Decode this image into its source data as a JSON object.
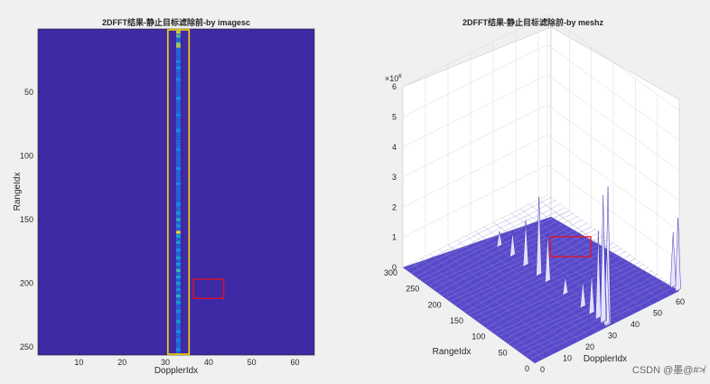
{
  "chart_data": [
    {
      "type": "heatmap",
      "title": "2DFFT结果-静止目标滤除前-by imagesc",
      "xlabel": "DopplerIdx",
      "ylabel": "RangeIdx",
      "xlim": [
        0.5,
        64.5
      ],
      "ylim": [
        0.5,
        256.5
      ],
      "xticks": [
        10,
        20,
        30,
        40,
        50,
        60
      ],
      "yticks": [
        50,
        100,
        150,
        200,
        250
      ],
      "y_direction": "reverse",
      "colormap": "parula",
      "background_color": "#3e2aa5",
      "hot_column": 33,
      "column_hotspots": [
        {
          "range": 3,
          "level": 0.75
        },
        {
          "range": 6,
          "level": 0.55
        },
        {
          "range": 12,
          "level": 0.6
        },
        {
          "range": 14,
          "level": 0.7
        },
        {
          "range": 26,
          "level": 0.25
        },
        {
          "range": 31,
          "level": 0.3
        },
        {
          "range": 40,
          "level": 0.25
        },
        {
          "range": 55,
          "level": 0.3
        },
        {
          "range": 68,
          "level": 0.25
        },
        {
          "range": 80,
          "level": 0.3
        },
        {
          "range": 95,
          "level": 0.25
        },
        {
          "range": 110,
          "level": 0.3
        },
        {
          "range": 122,
          "level": 0.25
        },
        {
          "range": 138,
          "level": 0.3
        },
        {
          "range": 145,
          "level": 0.35
        },
        {
          "range": 150,
          "level": 0.45
        },
        {
          "range": 155,
          "level": 0.3
        },
        {
          "range": 160,
          "level": 0.85
        },
        {
          "range": 163,
          "level": 0.4
        },
        {
          "range": 168,
          "level": 0.35
        },
        {
          "range": 174,
          "level": 0.3
        },
        {
          "range": 180,
          "level": 0.4
        },
        {
          "range": 185,
          "level": 0.35
        },
        {
          "range": 190,
          "level": 0.5
        },
        {
          "range": 195,
          "level": 0.4
        },
        {
          "range": 200,
          "level": 0.35
        },
        {
          "range": 205,
          "level": 0.3
        },
        {
          "range": 210,
          "level": 0.45
        },
        {
          "range": 215,
          "level": 0.35
        },
        {
          "range": 222,
          "level": 0.3
        },
        {
          "range": 230,
          "level": 0.35
        },
        {
          "range": 238,
          "level": 0.3
        },
        {
          "range": 245,
          "level": 0.25
        },
        {
          "range": 252,
          "level": 0.3
        }
      ],
      "highlight_boxes": [
        {
          "color": "#ffd700",
          "x": [
            31,
            35.5
          ],
          "y": [
            0.5,
            256.5
          ]
        },
        {
          "color": "#e8111c",
          "x": [
            36.5,
            43.5
          ],
          "y": [
            197,
            212
          ]
        }
      ]
    },
    {
      "type": "surface",
      "title": "2DFFT结果-静止目标滤除前-by meshz",
      "xlabel": "DopplerIdx",
      "ylabel": "RangeIdx",
      "zlabel": "",
      "xlim": [
        0,
        64
      ],
      "ylim": [
        0,
        300
      ],
      "zlim": [
        0,
        6000000
      ],
      "xticks": [
        0,
        10,
        20,
        30,
        40,
        50,
        60
      ],
      "yticks": [
        0,
        50,
        100,
        150,
        200,
        250,
        300
      ],
      "zticks": [
        0,
        1,
        2,
        3,
        4,
        5,
        6
      ],
      "z_exponent_label": "×10",
      "z_exponent": "6",
      "peaks": [
        {
          "doppler": 33,
          "range": 3,
          "z": 4.6
        },
        {
          "doppler": 33,
          "range": 6,
          "z": 2.5
        },
        {
          "doppler": 33,
          "range": 12,
          "z": 3.0
        },
        {
          "doppler": 33,
          "range": 14,
          "z": 4.2
        },
        {
          "doppler": 33,
          "range": 25,
          "z": 2.9
        },
        {
          "doppler": 33,
          "range": 40,
          "z": 1.4
        },
        {
          "doppler": 33,
          "range": 60,
          "z": 0.9
        },
        {
          "doppler": 33,
          "range": 100,
          "z": 0.6
        },
        {
          "doppler": 33,
          "range": 140,
          "z": 1.6
        },
        {
          "doppler": 33,
          "range": 160,
          "z": 2.6
        },
        {
          "doppler": 33,
          "range": 190,
          "z": 1.5
        },
        {
          "doppler": 33,
          "range": 220,
          "z": 0.8
        },
        {
          "doppler": 33,
          "range": 250,
          "z": 0.5
        },
        {
          "doppler": 64,
          "range": 3,
          "z": 2.4
        },
        {
          "doppler": 64,
          "range": 14,
          "z": 1.8
        }
      ],
      "highlight_box": {
        "color": "#e8111c"
      }
    }
  ],
  "watermark": "CSDN @墨@#≯"
}
